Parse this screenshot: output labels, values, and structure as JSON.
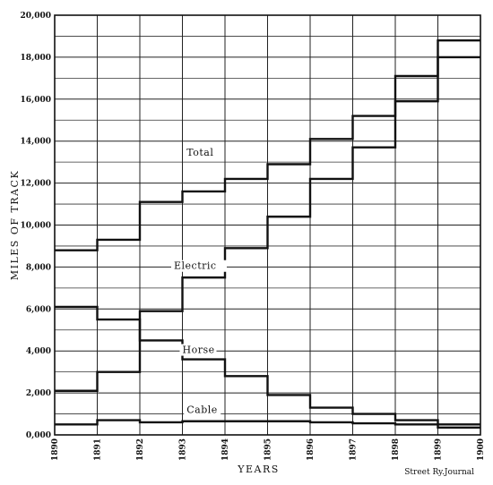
{
  "chart_data": {
    "type": "line",
    "step": true,
    "title": "",
    "xlabel": "YEARS",
    "ylabel": "MILES OF TRACK",
    "credit": "Street Ry.Journal",
    "x_ticks": [
      "1890",
      "1891",
      "1892",
      "1893",
      "1894",
      "1895",
      "1896",
      "1897",
      "1898",
      "1899",
      "1900"
    ],
    "y_ticks": [
      "0,000",
      "2,000",
      "4,000",
      "6,000",
      "8,000",
      "10,000",
      "12,000",
      "14,000",
      "16,000",
      "18,000",
      "20,000"
    ],
    "xlim": [
      1890,
      1900
    ],
    "ylim": [
      0,
      20000
    ],
    "grid": true,
    "legend": "labels on chart",
    "series": [
      {
        "name": "Total",
        "years": [
          1890,
          1891,
          1892,
          1893,
          1894,
          1895,
          1896,
          1897,
          1898,
          1899
        ],
        "values": [
          8800,
          9300,
          11100,
          11600,
          12200,
          12900,
          14100,
          15200,
          17100,
          18800
        ]
      },
      {
        "name": "Electric",
        "years": [
          1890,
          1891,
          1892,
          1893,
          1894,
          1895,
          1896,
          1897,
          1898,
          1899
        ],
        "values": [
          2100,
          3000,
          5900,
          7500,
          8900,
          10400,
          12200,
          13700,
          15900,
          18000
        ]
      },
      {
        "name": "Horse",
        "years": [
          1890,
          1891,
          1892,
          1893,
          1894,
          1895,
          1896,
          1897,
          1898,
          1899
        ],
        "values": [
          6100,
          5500,
          4500,
          3600,
          2800,
          1900,
          1300,
          1000,
          700,
          500
        ]
      },
      {
        "name": "Cable",
        "years": [
          1890,
          1891,
          1892,
          1893,
          1894,
          1895,
          1896,
          1897,
          1898,
          1899
        ],
        "values": [
          500,
          700,
          600,
          650,
          650,
          650,
          600,
          550,
          500,
          350
        ]
      }
    ],
    "annotations": [
      {
        "series": "Total",
        "label": "Total",
        "year": 1893.1,
        "value": 13300
      },
      {
        "series": "Electric",
        "label": "Electric",
        "year": 1892.8,
        "value": 7900
      },
      {
        "series": "Horse",
        "label": "Horse",
        "year": 1893.0,
        "value": 3900
      },
      {
        "series": "Cable",
        "label": "Cable",
        "year": 1893.1,
        "value": 1050
      }
    ]
  }
}
